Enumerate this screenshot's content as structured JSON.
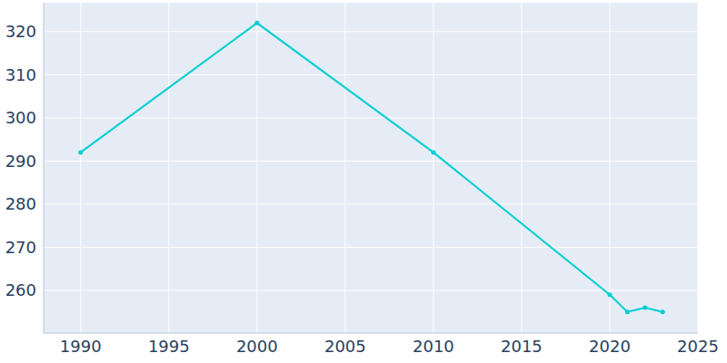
{
  "chart_data": {
    "type": "line",
    "x": [
      1990,
      2000,
      2010,
      2020,
      2021,
      2022,
      2023
    ],
    "values": [
      292,
      322,
      292,
      259,
      255,
      256,
      255
    ],
    "color": "#00ced1",
    "marker": "circle",
    "xlim": [
      1987.9,
      2025
    ],
    "xticks": [
      1990,
      1995,
      2000,
      2005,
      2010,
      2015,
      2020,
      2025
    ],
    "ylim": [
      250.1,
      326.7
    ],
    "yticks": [
      260,
      270,
      280,
      290,
      300,
      310,
      320
    ],
    "grid": true
  }
}
